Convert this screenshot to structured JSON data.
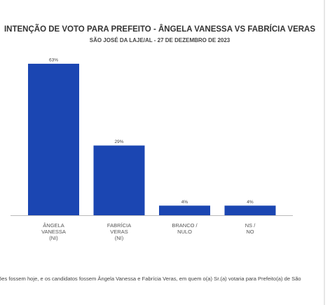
{
  "chart_data": {
    "type": "bar",
    "title": "INTENÇÃO DE VOTO PARA PREFEITO - ÂNGELA VANESSA VS FABRÍCIA VERAS",
    "subtitle": "SÃO JOSÉ DA LAJE/AL - 27 DE DEZEMBRO DE 2023",
    "categories": [
      [
        "ÂNGELA",
        "VANESSA",
        "(NI)"
      ],
      [
        "FABRÍCIA",
        "VERAS",
        "(NI)"
      ],
      [
        "BRANCO /",
        "NULO"
      ],
      [
        "NS /",
        "NO"
      ]
    ],
    "values": [
      63,
      29,
      4,
      4
    ],
    "value_labels": [
      "63%",
      "29%",
      "4%",
      "4%"
    ],
    "color": "#1b46b2",
    "footnote": "ões fossem hoje, e os candidatos fossem Ângela Vanessa e Fabrícia Veras, em quem o(a) Sr.(a) votaria para Prefeito(a) de São"
  }
}
